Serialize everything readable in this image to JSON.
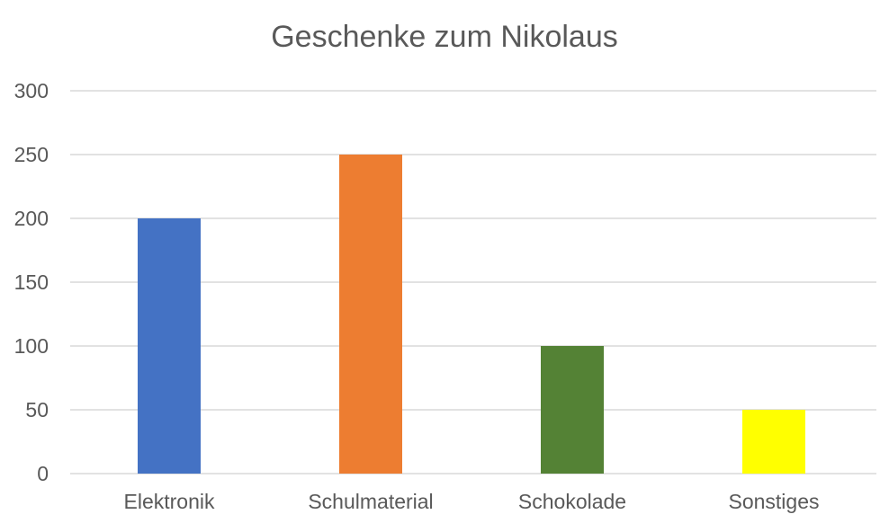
{
  "chart_data": {
    "type": "bar",
    "title": "Geschenke zum Nikolaus",
    "categories": [
      "Elektronik",
      "Schulmaterial",
      "Schokolade",
      "Sonstiges"
    ],
    "values": [
      200,
      250,
      100,
      50
    ],
    "colors": [
      "#4472C4",
      "#ED7D31",
      "#548235",
      "#FFFF00"
    ],
    "ylim": [
      0,
      300
    ],
    "yticks": [
      "0",
      "50",
      "100",
      "150",
      "200",
      "250",
      "300"
    ],
    "grid": true,
    "legend": "none"
  },
  "style": {
    "grid_color": "#d9d9d9",
    "text_color": "#595959"
  }
}
